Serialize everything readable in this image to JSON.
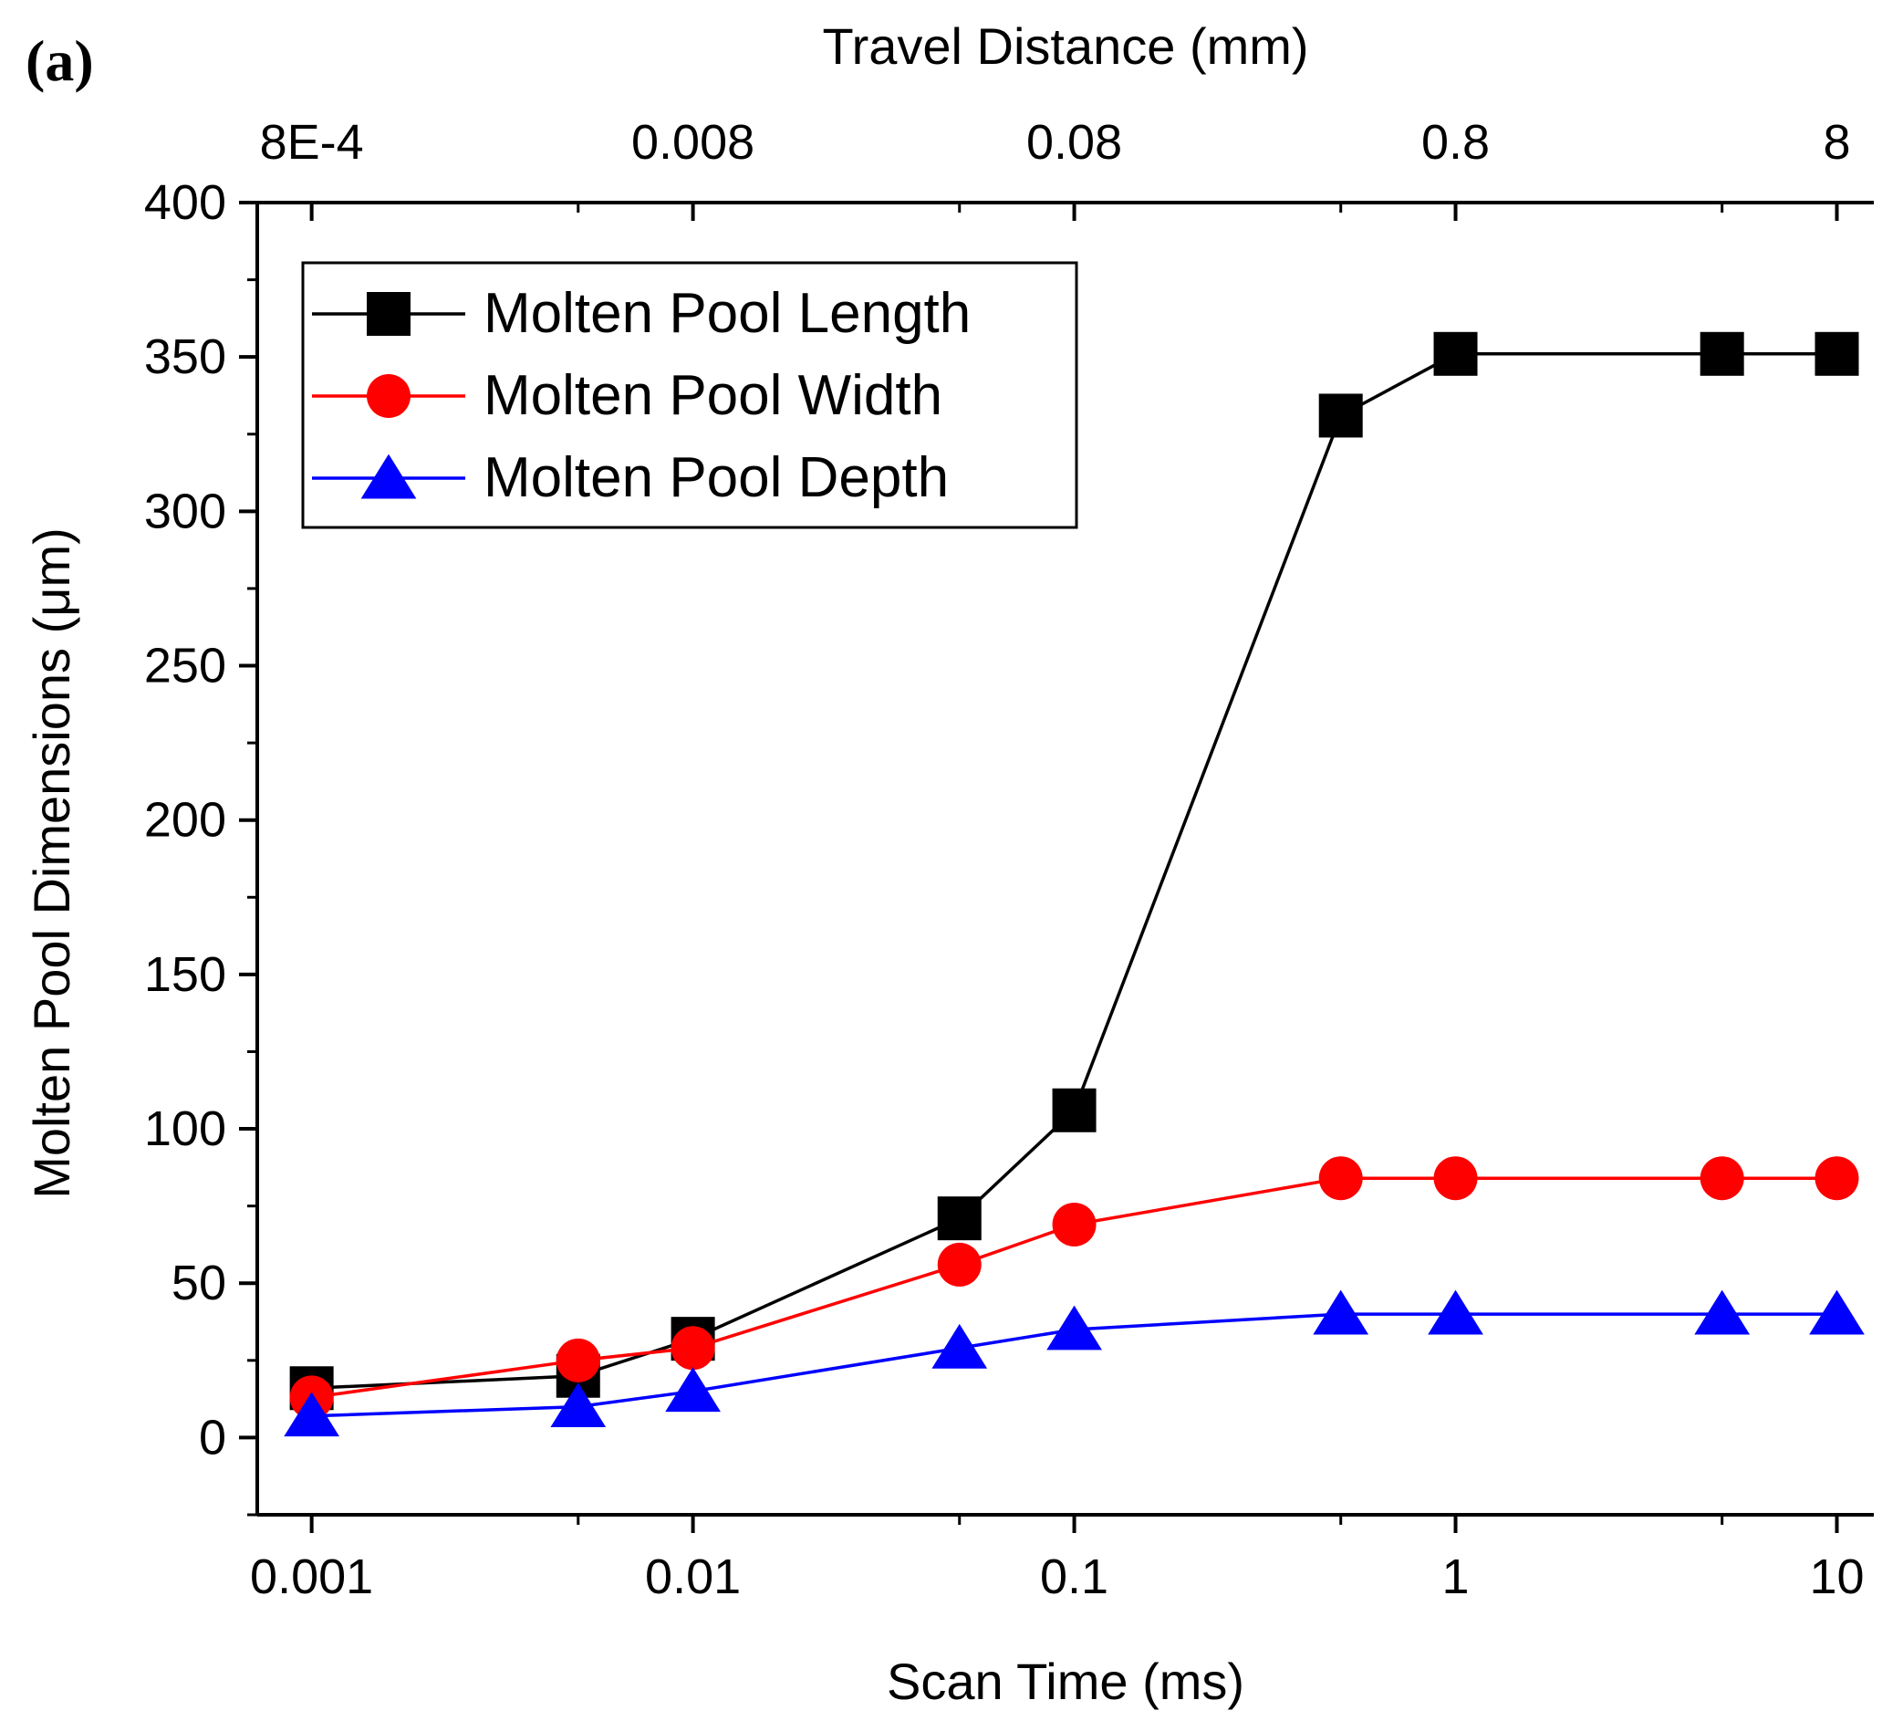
{
  "chart_data": {
    "type": "line",
    "panel_label": "(a)",
    "xlabel": "Scan Time (ms)",
    "x2label": "Travel Distance (mm)",
    "ylabel": "Molten Pool Dimensions (μm)",
    "xscale": "log",
    "xlim": [
      0.00072,
      12.5
    ],
    "ylim": [
      -25,
      400
    ],
    "x_ticks": [
      0.001,
      0.01,
      0.1,
      1,
      10
    ],
    "x_tick_labels": [
      "0.001",
      "0.01",
      "0.1",
      "1",
      "10"
    ],
    "x_minor_ticks": [
      0.005,
      0.05,
      0.5,
      5
    ],
    "x2_ticks": [
      0.001,
      0.01,
      0.1,
      1,
      10
    ],
    "x2_tick_labels": [
      "8E-4",
      "0.008",
      "0.08",
      "0.8",
      "8"
    ],
    "y_ticks": [
      0,
      50,
      100,
      150,
      200,
      250,
      300,
      350,
      400
    ],
    "y_tick_labels": [
      "0",
      "50",
      "100",
      "150",
      "200",
      "250",
      "300",
      "350",
      "400"
    ],
    "y_minor_step": 25,
    "legend_position": "top-left",
    "x": [
      0.001,
      0.005,
      0.01,
      0.05,
      0.1,
      0.5,
      1,
      5,
      10
    ],
    "series": [
      {
        "name": "Molten Pool Length",
        "color": "#000000",
        "marker": "square",
        "values": [
          16,
          20,
          32,
          71,
          106,
          331,
          351,
          351,
          351
        ]
      },
      {
        "name": "Molten Pool Width",
        "color": "#ff0000",
        "marker": "circle",
        "values": [
          13,
          25,
          29,
          56,
          69,
          84,
          84,
          84,
          84
        ]
      },
      {
        "name": "Molten Pool Depth",
        "color": "#0000ff",
        "marker": "triangle",
        "values": [
          7,
          10,
          15,
          29,
          35,
          40,
          40,
          40,
          40
        ]
      }
    ]
  }
}
